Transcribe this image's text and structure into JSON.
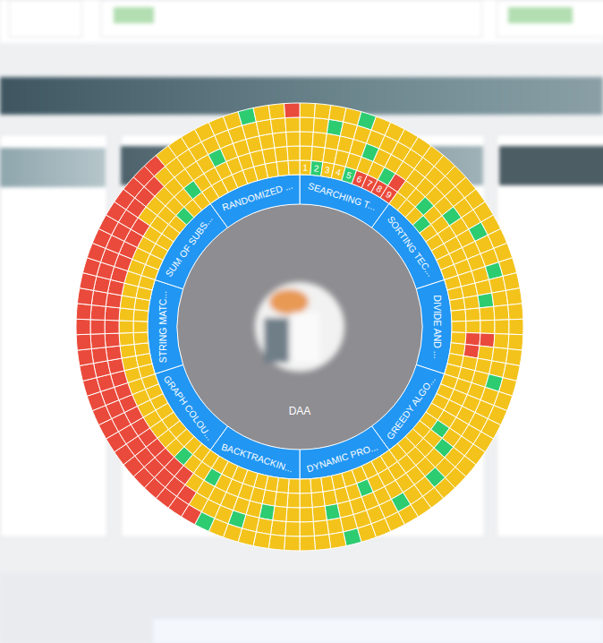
{
  "chart_data": {
    "type": "sunburst",
    "center_label": "DAA",
    "color": "#2196f3",
    "topics": [
      {
        "name": "SEARCHING T...",
        "cell_labels": [
          "1",
          "2",
          "3",
          "4",
          "5",
          "6",
          "7",
          "8",
          "9"
        ],
        "rings": [
          [
            "#f3c31b",
            "#2ecc71",
            "#f3c31b",
            "#f3c31b",
            "#2ecc71",
            "#ea4a3b",
            "#ea4a3b",
            "#ea4a3b",
            "#ea4a3b"
          ],
          [
            "#f3c31b",
            "#f3c31b",
            "#f3c31b",
            "#f3c31b",
            "#f3c31b",
            "#f3c31b",
            "#f3c31b",
            "#2ecc71",
            "#ea4a3b"
          ],
          [
            "#f3c31b",
            "#f3c31b",
            "#f3c31b",
            "#f3c31b",
            "#f3c31b",
            "#2ecc71",
            "#f3c31b",
            "#f3c31b",
            "#f3c31b"
          ],
          [
            "#f3c31b",
            "#f3c31b",
            "#2ecc71",
            "#f3c31b",
            "#f3c31b",
            "#f3c31b",
            "#f3c31b",
            "#f3c31b",
            "#f3c31b"
          ],
          [
            "#f3c31b",
            "#f3c31b",
            "#f3c31b",
            "#f3c31b",
            "#2ecc71",
            "#f3c31b",
            "#f3c31b",
            "#f3c31b",
            "#f3c31b"
          ]
        ]
      },
      {
        "name": "SORTING TEC...",
        "rings": [
          [
            "#f3c31b",
            "#f3c31b",
            "#f3c31b",
            "#2ecc71",
            "#f3c31b",
            "#f3c31b",
            "#f3c31b",
            "#f3c31b",
            "#f3c31b"
          ],
          [
            "#f3c31b",
            "#f3c31b",
            "#2ecc71",
            "#f3c31b",
            "#f3c31b",
            "#f3c31b",
            "#f3c31b",
            "#f3c31b",
            "#f3c31b"
          ],
          [
            "#f3c31b",
            "#f3c31b",
            "#f3c31b",
            "#f3c31b",
            "#2ecc71",
            "#f3c31b",
            "#f3c31b",
            "#f3c31b",
            "#f3c31b"
          ],
          [
            "#f3c31b",
            "#f3c31b",
            "#f3c31b",
            "#f3c31b",
            "#f3c31b",
            "#f3c31b",
            "#2ecc71",
            "#f3c31b",
            "#f3c31b"
          ],
          [
            "#f3c31b",
            "#f3c31b",
            "#f3c31b",
            "#f3c31b",
            "#f3c31b",
            "#f3c31b",
            "#f3c31b",
            "#f3c31b",
            "#f3c31b"
          ]
        ]
      },
      {
        "name": "DIVIDE AND ...",
        "rings": [
          [
            "#f3c31b",
            "#f3c31b",
            "#f3c31b",
            "#f3c31b",
            "#f3c31b",
            "#f3c31b",
            "#f3c31b",
            "#f3c31b",
            "#f3c31b"
          ],
          [
            "#f3c31b",
            "#f3c31b",
            "#f3c31b",
            "#f3c31b",
            "#f3c31b",
            "#ea4a3b",
            "#ea4a3b",
            "#f3c31b",
            "#f3c31b"
          ],
          [
            "#f3c31b",
            "#f3c31b",
            "#2ecc71",
            "#f3c31b",
            "#f3c31b",
            "#ea4a3b",
            "#f3c31b",
            "#f3c31b",
            "#f3c31b"
          ],
          [
            "#2ecc71",
            "#f3c31b",
            "#f3c31b",
            "#f3c31b",
            "#f3c31b",
            "#f3c31b",
            "#f3c31b",
            "#f3c31b",
            "#2ecc71"
          ],
          [
            "#f3c31b",
            "#f3c31b",
            "#f3c31b",
            "#f3c31b",
            "#f3c31b",
            "#f3c31b",
            "#f3c31b",
            "#f3c31b",
            "#f3c31b"
          ]
        ]
      },
      {
        "name": "GREEDY ALGO...",
        "rings": [
          [
            "#f3c31b",
            "#f3c31b",
            "#f3c31b",
            "#f3c31b",
            "#f3c31b",
            "#f3c31b",
            "#f3c31b",
            "#f3c31b",
            "#f3c31b"
          ],
          [
            "#f3c31b",
            "#f3c31b",
            "#f3c31b",
            "#f3c31b",
            "#2ecc71",
            "#f3c31b",
            "#f3c31b",
            "#f3c31b",
            "#f3c31b"
          ],
          [
            "#f3c31b",
            "#f3c31b",
            "#f3c31b",
            "#f3c31b",
            "#f3c31b",
            "#2ecc71",
            "#f3c31b",
            "#f3c31b",
            "#f3c31b"
          ],
          [
            "#f3c31b",
            "#f3c31b",
            "#f3c31b",
            "#f3c31b",
            "#f3c31b",
            "#f3c31b",
            "#f3c31b",
            "#2ecc71",
            "#f3c31b"
          ],
          [
            "#f3c31b",
            "#f3c31b",
            "#f3c31b",
            "#f3c31b",
            "#f3c31b",
            "#f3c31b",
            "#f3c31b",
            "#f3c31b",
            "#f3c31b"
          ]
        ]
      },
      {
        "name": "DYNAMIC PRO...",
        "rings": [
          [
            "#f3c31b",
            "#f3c31b",
            "#f3c31b",
            "#f3c31b",
            "#f3c31b",
            "#f3c31b",
            "#f3c31b",
            "#f3c31b",
            "#f3c31b"
          ],
          [
            "#f3c31b",
            "#f3c31b",
            "#f3c31b",
            "#2ecc71",
            "#f3c31b",
            "#f3c31b",
            "#f3c31b",
            "#f3c31b",
            "#f3c31b"
          ],
          [
            "#f3c31b",
            "#f3c31b",
            "#f3c31b",
            "#f3c31b",
            "#f3c31b",
            "#f3c31b",
            "#2ecc71",
            "#f3c31b",
            "#f3c31b"
          ],
          [
            "#f3c31b",
            "#2ecc71",
            "#f3c31b",
            "#f3c31b",
            "#f3c31b",
            "#f3c31b",
            "#f3c31b",
            "#f3c31b",
            "#f3c31b"
          ],
          [
            "#f3c31b",
            "#f3c31b",
            "#f3c31b",
            "#f3c31b",
            "#f3c31b",
            "#2ecc71",
            "#f3c31b",
            "#f3c31b",
            "#f3c31b"
          ]
        ]
      },
      {
        "name": "BACKTRACKIN...",
        "rings": [
          [
            "#f3c31b",
            "#f3c31b",
            "#f3c31b",
            "#f3c31b",
            "#f3c31b",
            "#f3c31b",
            "#f3c31b",
            "#f3c31b",
            "#f3c31b"
          ],
          [
            "#f3c31b",
            "#f3c31b",
            "#f3c31b",
            "#f3c31b",
            "#f3c31b",
            "#f3c31b",
            "#f3c31b",
            "#2ecc71",
            "#f3c31b"
          ],
          [
            "#f3c31b",
            "#f3c31b",
            "#2ecc71",
            "#f3c31b",
            "#f3c31b",
            "#f3c31b",
            "#f3c31b",
            "#f3c31b",
            "#f3c31b"
          ],
          [
            "#f3c31b",
            "#f3c31b",
            "#f3c31b",
            "#f3c31b",
            "#2ecc71",
            "#f3c31b",
            "#f3c31b",
            "#f3c31b",
            "#ea4a3b"
          ],
          [
            "#f3c31b",
            "#f3c31b",
            "#f3c31b",
            "#f3c31b",
            "#f3c31b",
            "#f3c31b",
            "#2ecc71",
            "#ea4a3b",
            "#ea4a3b"
          ]
        ]
      },
      {
        "name": "GRAPH COLOU...",
        "rings": [
          [
            "#f3c31b",
            "#f3c31b",
            "#f3c31b",
            "#f3c31b",
            "#f3c31b",
            "#f3c31b",
            "#f3c31b",
            "#f3c31b",
            "#f3c31b"
          ],
          [
            "#f3c31b",
            "#2ecc71",
            "#f3c31b",
            "#f3c31b",
            "#f3c31b",
            "#f3c31b",
            "#f3c31b",
            "#f3c31b",
            "#f3c31b"
          ],
          [
            "#ea4a3b",
            "#ea4a3b",
            "#ea4a3b",
            "#ea4a3b",
            "#ea4a3b",
            "#ea4a3b",
            "#ea4a3b",
            "#ea4a3b",
            "#ea4a3b"
          ],
          [
            "#ea4a3b",
            "#ea4a3b",
            "#ea4a3b",
            "#ea4a3b",
            "#ea4a3b",
            "#ea4a3b",
            "#ea4a3b",
            "#ea4a3b",
            "#ea4a3b"
          ],
          [
            "#ea4a3b",
            "#ea4a3b",
            "#ea4a3b",
            "#ea4a3b",
            "#ea4a3b",
            "#ea4a3b",
            "#ea4a3b",
            "#ea4a3b",
            "#ea4a3b"
          ]
        ]
      },
      {
        "name": "STRING MATC...",
        "rings": [
          [
            "#f3c31b",
            "#f3c31b",
            "#f3c31b",
            "#f3c31b",
            "#f3c31b",
            "#f3c31b",
            "#f3c31b",
            "#f3c31b",
            "#f3c31b"
          ],
          [
            "#f3c31b",
            "#f3c31b",
            "#f3c31b",
            "#f3c31b",
            "#f3c31b",
            "#f3c31b",
            "#f3c31b",
            "#f3c31b",
            "#f3c31b"
          ],
          [
            "#ea4a3b",
            "#ea4a3b",
            "#ea4a3b",
            "#ea4a3b",
            "#ea4a3b",
            "#ea4a3b",
            "#ea4a3b",
            "#ea4a3b",
            "#ea4a3b"
          ],
          [
            "#ea4a3b",
            "#ea4a3b",
            "#ea4a3b",
            "#ea4a3b",
            "#ea4a3b",
            "#ea4a3b",
            "#ea4a3b",
            "#ea4a3b",
            "#ea4a3b"
          ],
          [
            "#ea4a3b",
            "#ea4a3b",
            "#ea4a3b",
            "#ea4a3b",
            "#ea4a3b",
            "#ea4a3b",
            "#ea4a3b",
            "#ea4a3b",
            "#ea4a3b"
          ]
        ]
      },
      {
        "name": "SUM OF SUBS...",
        "rings": [
          [
            "#f3c31b",
            "#f3c31b",
            "#f3c31b",
            "#f3c31b",
            "#f3c31b",
            "#f3c31b",
            "#2ecc71",
            "#f3c31b",
            "#f3c31b"
          ],
          [
            "#f3c31b",
            "#f3c31b",
            "#f3c31b",
            "#f3c31b",
            "#f3c31b",
            "#f3c31b",
            "#f3c31b",
            "#f3c31b",
            "#2ecc71"
          ],
          [
            "#ea4a3b",
            "#ea4a3b",
            "#ea4a3b",
            "#ea4a3b",
            "#f3c31b",
            "#f3c31b",
            "#f3c31b",
            "#f3c31b",
            "#f3c31b"
          ],
          [
            "#ea4a3b",
            "#ea4a3b",
            "#ea4a3b",
            "#ea4a3b",
            "#ea4a3b",
            "#ea4a3b",
            "#ea4a3b",
            "#f3c31b",
            "#f3c31b"
          ],
          [
            "#ea4a3b",
            "#ea4a3b",
            "#ea4a3b",
            "#ea4a3b",
            "#ea4a3b",
            "#ea4a3b",
            "#ea4a3b",
            "#ea4a3b",
            "#f3c31b"
          ]
        ]
      },
      {
        "name": "RANDOMIZED ...",
        "rings": [
          [
            "#f3c31b",
            "#f3c31b",
            "#f3c31b",
            "#f3c31b",
            "#f3c31b",
            "#f3c31b",
            "#f3c31b",
            "#f3c31b",
            "#f3c31b"
          ],
          [
            "#f3c31b",
            "#f3c31b",
            "#f3c31b",
            "#f3c31b",
            "#f3c31b",
            "#f3c31b",
            "#f3c31b",
            "#f3c31b",
            "#f3c31b"
          ],
          [
            "#f3c31b",
            "#f3c31b",
            "#2ecc71",
            "#f3c31b",
            "#f3c31b",
            "#f3c31b",
            "#f3c31b",
            "#f3c31b",
            "#f3c31b"
          ],
          [
            "#f3c31b",
            "#f3c31b",
            "#f3c31b",
            "#f3c31b",
            "#f3c31b",
            "#f3c31b",
            "#f3c31b",
            "#f3c31b",
            "#f3c31b"
          ],
          [
            "#f3c31b",
            "#f3c31b",
            "#f3c31b",
            "#f3c31b",
            "#f3c31b",
            "#2ecc71",
            "#f3c31b",
            "#f3c31b",
            "#ea4a3b"
          ]
        ]
      }
    ]
  }
}
